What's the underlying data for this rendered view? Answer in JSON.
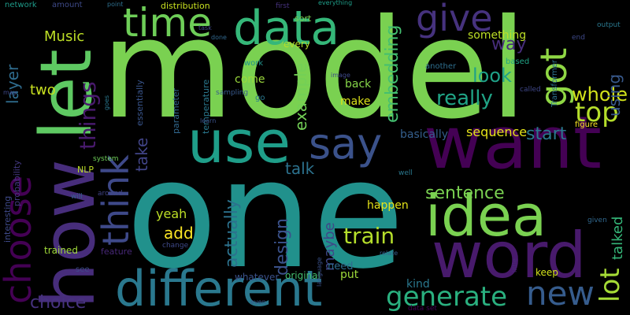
{
  "word_cloud": {
    "words": [
      {
        "text": "model",
        "color": "#7ad151"
      },
      {
        "text": "one",
        "color": "#21918c"
      },
      {
        "text": "want",
        "color": "#440154"
      },
      {
        "text": "word",
        "color": "#481a6c"
      },
      {
        "text": "use",
        "color": "#1f9e89"
      },
      {
        "text": "how",
        "color": "#472d7b"
      },
      {
        "text": "let",
        "color": "#5ec962"
      },
      {
        "text": "idea",
        "color": "#7ad151"
      },
      {
        "text": "different",
        "color": "#2a788e"
      },
      {
        "text": "say",
        "color": "#3b528b"
      },
      {
        "text": "time",
        "color": "#6ece58"
      },
      {
        "text": "data",
        "color": "#35b779"
      },
      {
        "text": "give",
        "color": "#46327e"
      },
      {
        "text": "got",
        "color": "#8fd744"
      },
      {
        "text": "choose",
        "color": "#440154"
      },
      {
        "text": "think",
        "color": "#3e4989"
      },
      {
        "text": "new",
        "color": "#365c8d"
      },
      {
        "text": "generate",
        "color": "#2ab07f"
      },
      {
        "text": "train",
        "color": "#b5de2b"
      },
      {
        "text": "lot",
        "color": "#a5db36"
      },
      {
        "text": "sentence",
        "color": "#7ad151"
      },
      {
        "text": "top",
        "color": "#b5de2b"
      },
      {
        "text": "whole",
        "color": "#d2e21b"
      },
      {
        "text": "really",
        "color": "#20a486"
      },
      {
        "text": "things",
        "color": "#481a6c"
      },
      {
        "text": "way",
        "color": "#472d7b"
      },
      {
        "text": "look",
        "color": "#1fa188"
      },
      {
        "text": "embedding",
        "color": "#44bf70"
      },
      {
        "text": "example",
        "color": "#73d056"
      },
      {
        "text": "design",
        "color": "#3b528b"
      },
      {
        "text": "choice",
        "color": "#46327e"
      },
      {
        "text": "actually",
        "color": "#2c728e"
      },
      {
        "text": "take",
        "color": "#414487"
      },
      {
        "text": "layer",
        "color": "#2f6c8e"
      },
      {
        "text": "talk",
        "color": "#2c728e"
      },
      {
        "text": "add",
        "color": "#fde725"
      },
      {
        "text": "start",
        "color": "#2a788e"
      },
      {
        "text": "using",
        "color": "#38598c"
      },
      {
        "text": "Music",
        "color": "#bddf26"
      },
      {
        "text": "two",
        "color": "#c8e020"
      },
      {
        "text": "maybe",
        "color": "#3f4788"
      },
      {
        "text": "yeah",
        "color": "#bddf26"
      },
      {
        "text": "talked",
        "color": "#35b779"
      },
      {
        "text": "come",
        "color": "#9bd93c"
      },
      {
        "text": "sequence",
        "color": "#e5e419"
      },
      {
        "text": "basically",
        "color": "#355f8d"
      },
      {
        "text": "something",
        "color": "#bddf26"
      },
      {
        "text": "make",
        "color": "#dde318"
      },
      {
        "text": "back",
        "color": "#86d549"
      },
      {
        "text": "happen",
        "color": "#e5e419"
      },
      {
        "text": "kind",
        "color": "#2a788e"
      },
      {
        "text": "put",
        "color": "#9fda3a"
      },
      {
        "text": "keep",
        "color": "#d2e21b"
      },
      {
        "text": "need",
        "color": "#2f6c8e"
      },
      {
        "text": "original",
        "color": "#44bf70"
      },
      {
        "text": "whatever",
        "color": "#3b528b"
      },
      {
        "text": "interesting",
        "color": "#3e4989"
      },
      {
        "text": "probability",
        "color": "#443983"
      },
      {
        "text": "essentially",
        "color": "#39558c"
      },
      {
        "text": "parameter",
        "color": "#31688e"
      },
      {
        "text": "temperature",
        "color": "#2a788e"
      },
      {
        "text": "feature",
        "color": "#482878"
      },
      {
        "text": "trained",
        "color": "#a0da39"
      },
      {
        "text": "NLP",
        "color": "#bddf26"
      },
      {
        "text": "system",
        "color": "#6ece58"
      },
      {
        "text": "network",
        "color": "#1e9b8a"
      },
      {
        "text": "amount",
        "color": "#3e4a89"
      },
      {
        "text": "distribution",
        "color": "#c8e020"
      },
      {
        "text": "sort",
        "color": "#7ad151"
      },
      {
        "text": "every",
        "color": "#b5de2b"
      },
      {
        "text": "another",
        "color": "#2e6f8e"
      },
      {
        "text": "based",
        "color": "#20a486"
      },
      {
        "text": "output",
        "color": "#2a788e"
      },
      {
        "text": "end",
        "color": "#3e4989"
      },
      {
        "text": "Transformer",
        "color": "#2c728e"
      },
      {
        "text": "figure",
        "color": "#fde725"
      },
      {
        "text": "given",
        "color": "#31688e"
      },
      {
        "text": "called",
        "color": "#3f4788"
      },
      {
        "text": "first",
        "color": "#46327e"
      },
      {
        "text": "everything",
        "color": "#1f9e89"
      },
      {
        "text": "point",
        "color": "#2e6f8e"
      },
      {
        "text": "task",
        "color": "#3f4788"
      },
      {
        "text": "done",
        "color": "#31688e"
      },
      {
        "text": "work",
        "color": "#21918c"
      },
      {
        "text": "image",
        "color": "#3e4a89"
      },
      {
        "text": "sampling",
        "color": "#38598c"
      },
      {
        "text": "go",
        "color": "#2a788e"
      },
      {
        "text": "goes",
        "color": "#2a788e"
      },
      {
        "text": "learn",
        "color": "#3b528b"
      },
      {
        "text": "may",
        "color": "#3e4989"
      },
      {
        "text": "see",
        "color": "#3e4a89"
      },
      {
        "text": "will",
        "color": "#355f8d"
      },
      {
        "text": "around",
        "color": "#414487"
      },
      {
        "text": "well",
        "color": "#2a788e"
      },
      {
        "text": "relate",
        "color": "#355f8d"
      },
      {
        "text": "little",
        "color": "#482878"
      },
      {
        "text": "language",
        "color": "#3b528b"
      },
      {
        "text": "change",
        "color": "#3e4989"
      },
      {
        "text": "even",
        "color": "#38598c"
      },
      {
        "text": "data set",
        "color": "#440154"
      }
    ]
  }
}
